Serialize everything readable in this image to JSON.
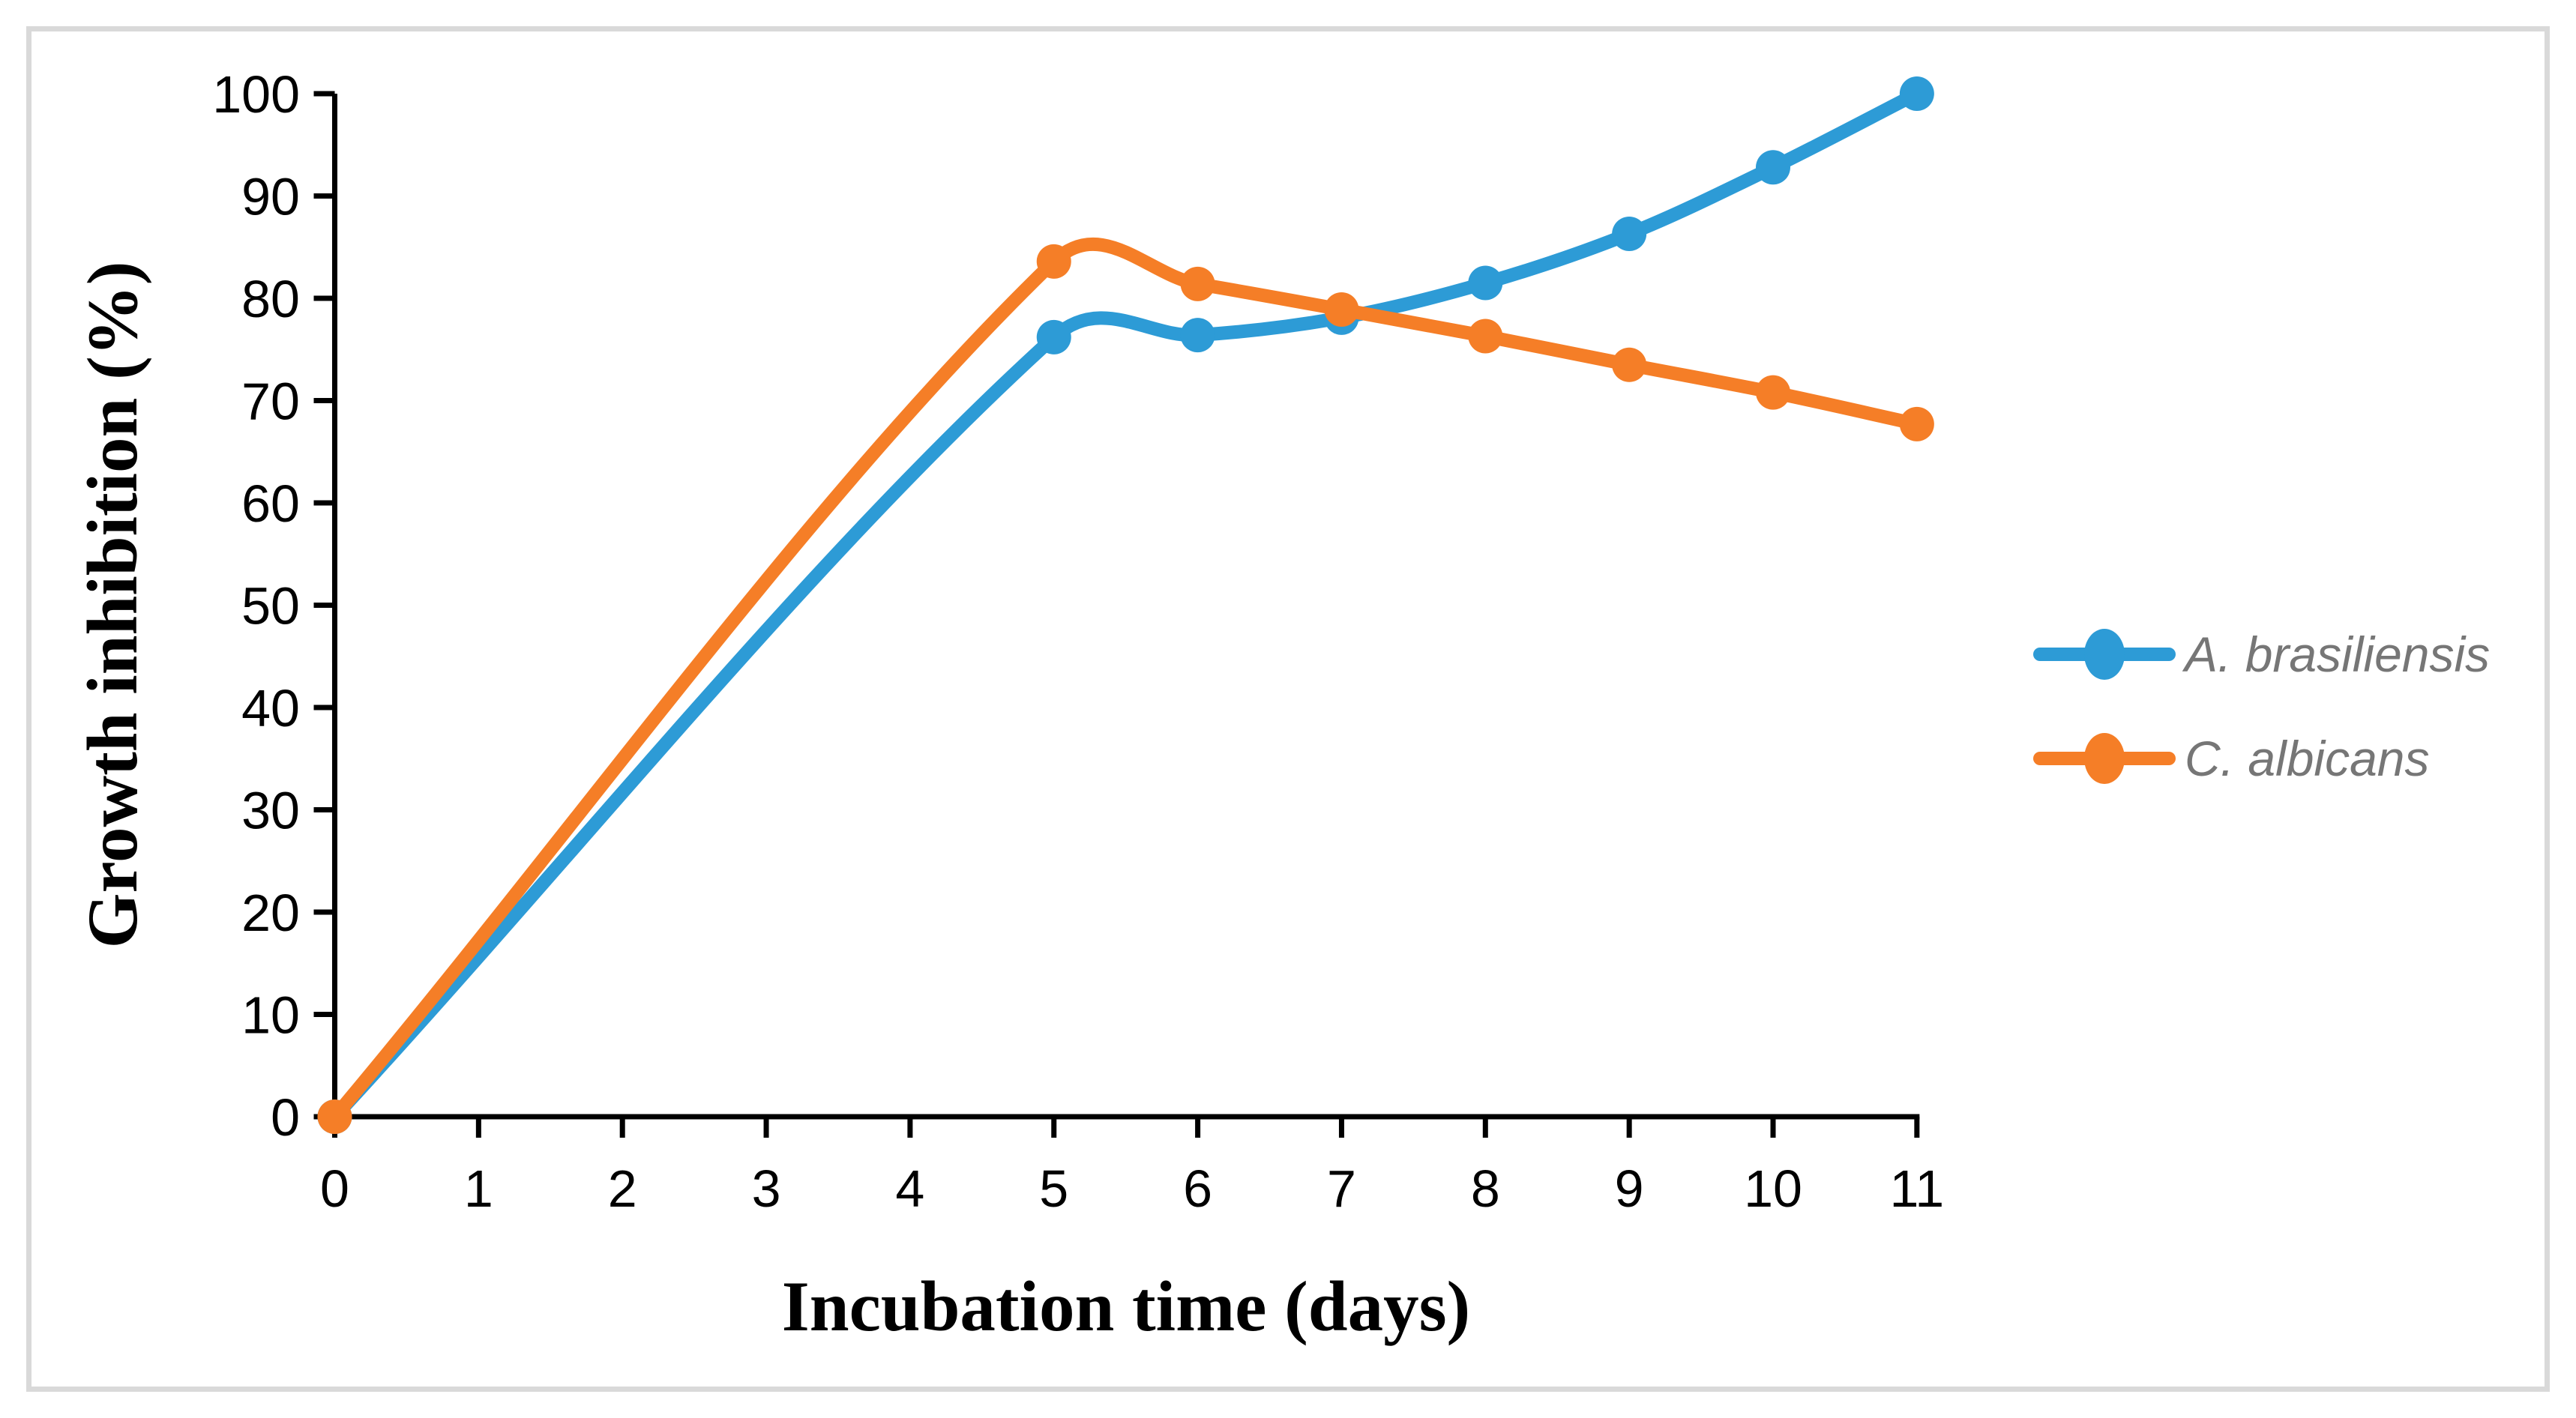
{
  "figure": {
    "background": "#FFFFFF",
    "border_color": "#D9D9D9"
  },
  "chart_data": {
    "type": "line",
    "title": "",
    "xlabel": "Incubation time (days)",
    "ylabel": "Growth inhibition (%)",
    "x": [
      0,
      5,
      6,
      7,
      8,
      9,
      10,
      11
    ],
    "series": [
      {
        "name": "A. brasiliensis",
        "color": "#2D9BD6",
        "values": [
          0,
          76.2,
          76.4,
          78.1,
          81.5,
          86.3,
          92.8,
          100
        ]
      },
      {
        "name": "C. albicans",
        "color": "#F57E27",
        "values": [
          0,
          83.6,
          81.4,
          78.9,
          76.3,
          73.5,
          70.8,
          67.7
        ]
      }
    ],
    "xlim": [
      0,
      11
    ],
    "ylim": [
      0,
      100
    ],
    "x_ticks": [
      0,
      1,
      2,
      3,
      4,
      5,
      6,
      7,
      8,
      9,
      10,
      11
    ],
    "y_ticks": [
      0,
      10,
      20,
      30,
      40,
      50,
      60,
      70,
      80,
      90,
      100
    ],
    "grid": false,
    "smoothed_lines": true,
    "markers": "circle",
    "legend_position": "right",
    "legend_text_color": "#767676",
    "axis_color": "#000000"
  }
}
